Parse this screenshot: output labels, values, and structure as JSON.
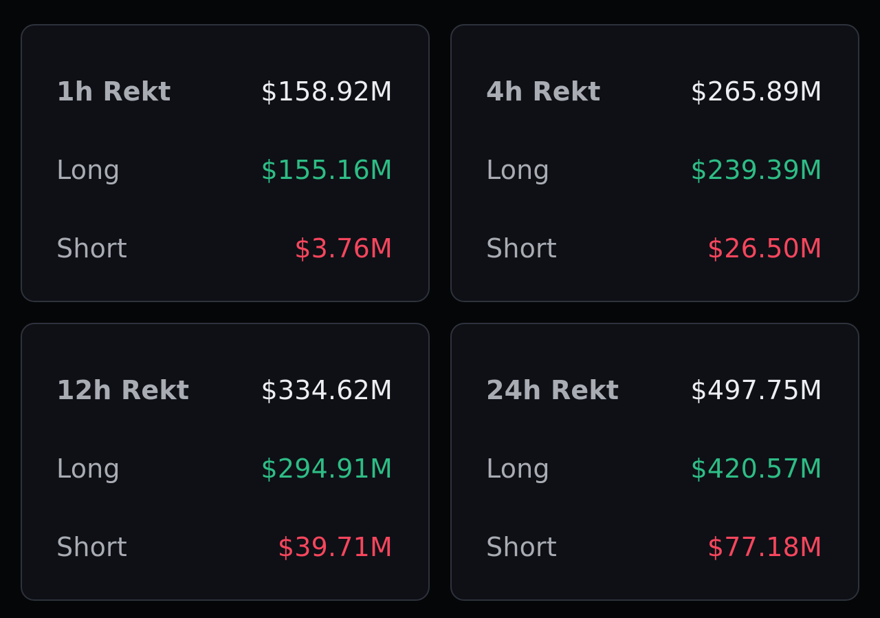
{
  "colors": {
    "background": "#050608",
    "card": "#0e1016",
    "border": "#2e323b",
    "label": "#a9acb3",
    "total": "#eceef1",
    "long": "#2ebd85",
    "short": "#f6465d"
  },
  "cards": [
    {
      "title": "1h Rekt",
      "total": "$158.92M",
      "long_label": "Long",
      "long": "$155.16M",
      "short_label": "Short",
      "short": "$3.76M"
    },
    {
      "title": "4h Rekt",
      "total": "$265.89M",
      "long_label": "Long",
      "long": "$239.39M",
      "short_label": "Short",
      "short": "$26.50M"
    },
    {
      "title": "12h Rekt",
      "total": "$334.62M",
      "long_label": "Long",
      "long": "$294.91M",
      "short_label": "Short",
      "short": "$39.71M"
    },
    {
      "title": "24h Rekt",
      "total": "$497.75M",
      "long_label": "Long",
      "long": "$420.57M",
      "short_label": "Short",
      "short": "$77.18M"
    }
  ]
}
